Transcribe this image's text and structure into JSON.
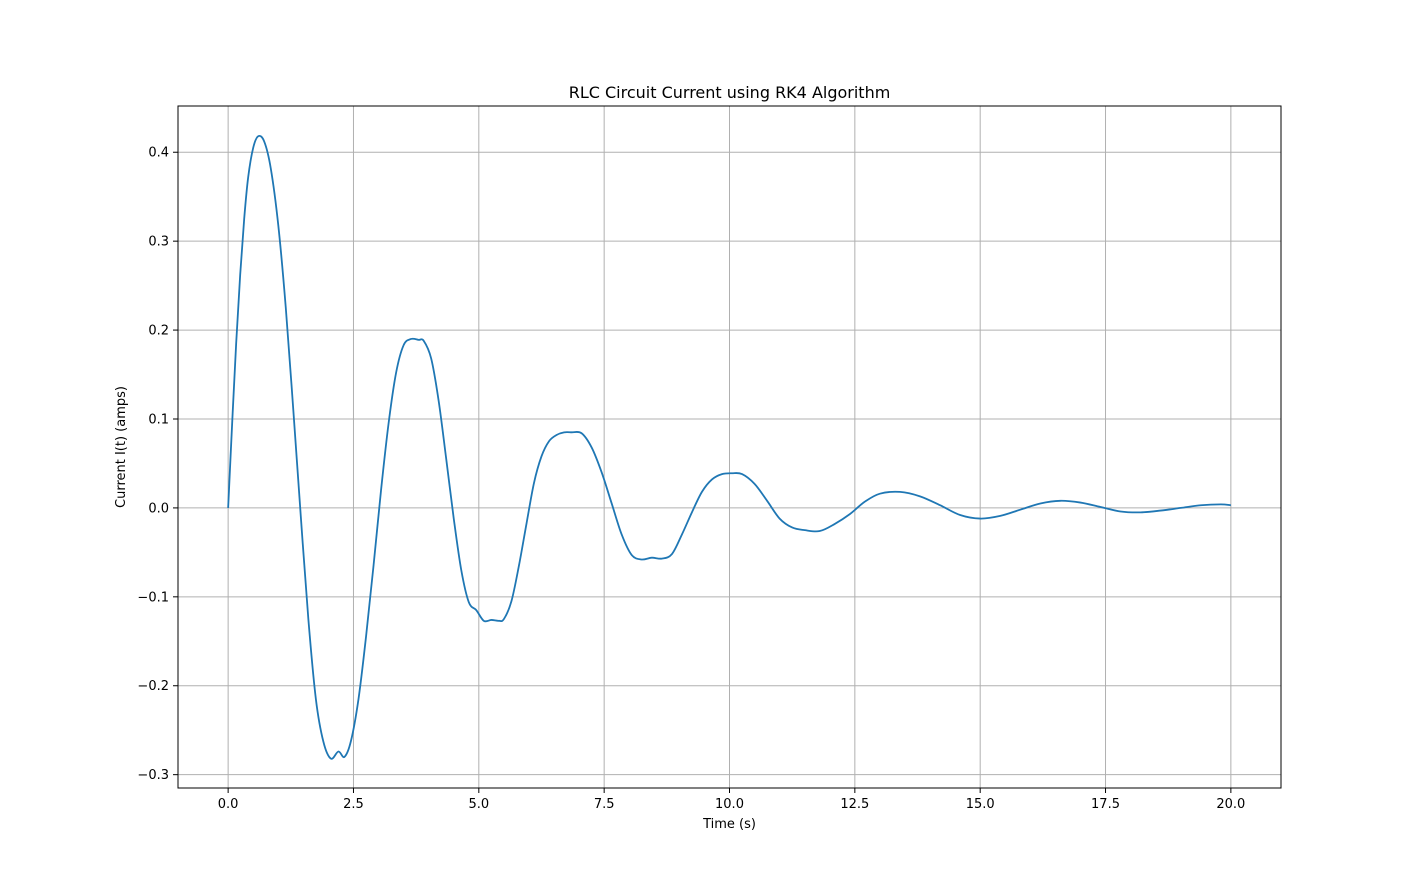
{
  "chart_data": {
    "type": "line",
    "title": "RLC Circuit Current using RK4 Algorithm",
    "xlabel": "Time (s)",
    "ylabel": "Current I(t) (amps)",
    "xlim": [
      -1.0,
      21.0
    ],
    "ylim": [
      -0.315,
      0.452
    ],
    "grid": true,
    "xticks": [
      0.0,
      2.5,
      5.0,
      7.5,
      10.0,
      12.5,
      15.0,
      17.5,
      20.0
    ],
    "xtick_labels": [
      "0.0",
      "2.5",
      "5.0",
      "7.5",
      "10.0",
      "12.5",
      "15.0",
      "17.5",
      "20.0"
    ],
    "yticks": [
      -0.3,
      -0.2,
      -0.1,
      0.0,
      0.1,
      0.2,
      0.3,
      0.4
    ],
    "ytick_labels": [
      "−0.3",
      "−0.2",
      "−0.1",
      "0.0",
      "0.1",
      "0.2",
      "0.3",
      "0.4"
    ],
    "series": [
      {
        "color": "#1f77b4",
        "x": [
          0.0,
          0.08,
          0.16,
          0.24,
          0.32,
          0.4,
          0.5,
          0.6,
          0.72,
          0.85,
          1.0,
          1.15,
          1.3,
          1.45,
          1.6,
          1.75,
          1.9,
          2.05,
          2.2,
          2.32,
          2.45,
          2.6,
          2.75,
          2.9,
          3.05,
          3.2,
          3.35,
          3.5,
          3.65,
          3.8,
          3.9,
          4.05,
          4.2,
          4.35,
          4.5,
          4.65,
          4.8,
          4.95,
          5.1,
          5.25,
          5.4,
          5.5,
          5.65,
          5.8,
          5.95,
          6.1,
          6.25,
          6.4,
          6.55,
          6.7,
          6.85,
          7.05,
          7.25,
          7.45,
          7.65,
          7.85,
          8.05,
          8.25,
          8.45,
          8.65,
          8.85,
          9.05,
          9.25,
          9.45,
          9.65,
          9.85,
          10.05,
          10.25,
          10.5,
          10.75,
          11.0,
          11.25,
          11.5,
          11.8,
          12.1,
          12.4,
          12.7,
          13.0,
          13.4,
          13.8,
          14.2,
          14.6,
          15.0,
          15.4,
          15.8,
          16.2,
          16.6,
          17.0,
          17.4,
          17.8,
          18.2,
          18.6,
          19.0,
          19.4,
          19.8,
          20.0
        ],
        "y": [
          0.0,
          0.095,
          0.185,
          0.262,
          0.325,
          0.372,
          0.405,
          0.418,
          0.412,
          0.382,
          0.318,
          0.225,
          0.11,
          -0.01,
          -0.125,
          -0.215,
          -0.263,
          -0.282,
          -0.274,
          -0.28,
          -0.262,
          -0.215,
          -0.145,
          -0.065,
          0.02,
          0.095,
          0.152,
          0.183,
          0.19,
          0.189,
          0.188,
          0.168,
          0.12,
          0.055,
          -0.012,
          -0.07,
          -0.106,
          -0.115,
          -0.127,
          -0.126,
          -0.127,
          -0.125,
          -0.105,
          -0.065,
          -0.018,
          0.028,
          0.058,
          0.075,
          0.082,
          0.085,
          0.085,
          0.084,
          0.068,
          0.04,
          0.005,
          -0.03,
          -0.053,
          -0.058,
          -0.056,
          -0.057,
          -0.052,
          -0.03,
          -0.005,
          0.018,
          0.032,
          0.038,
          0.039,
          0.038,
          0.027,
          0.008,
          -0.012,
          -0.022,
          -0.025,
          -0.026,
          -0.018,
          -0.007,
          0.007,
          0.016,
          0.018,
          0.013,
          0.003,
          -0.008,
          -0.012,
          -0.009,
          -0.002,
          0.005,
          0.008,
          0.006,
          0.001,
          -0.004,
          -0.005,
          -0.003,
          0.0,
          0.003,
          0.004,
          0.003
        ]
      }
    ]
  }
}
